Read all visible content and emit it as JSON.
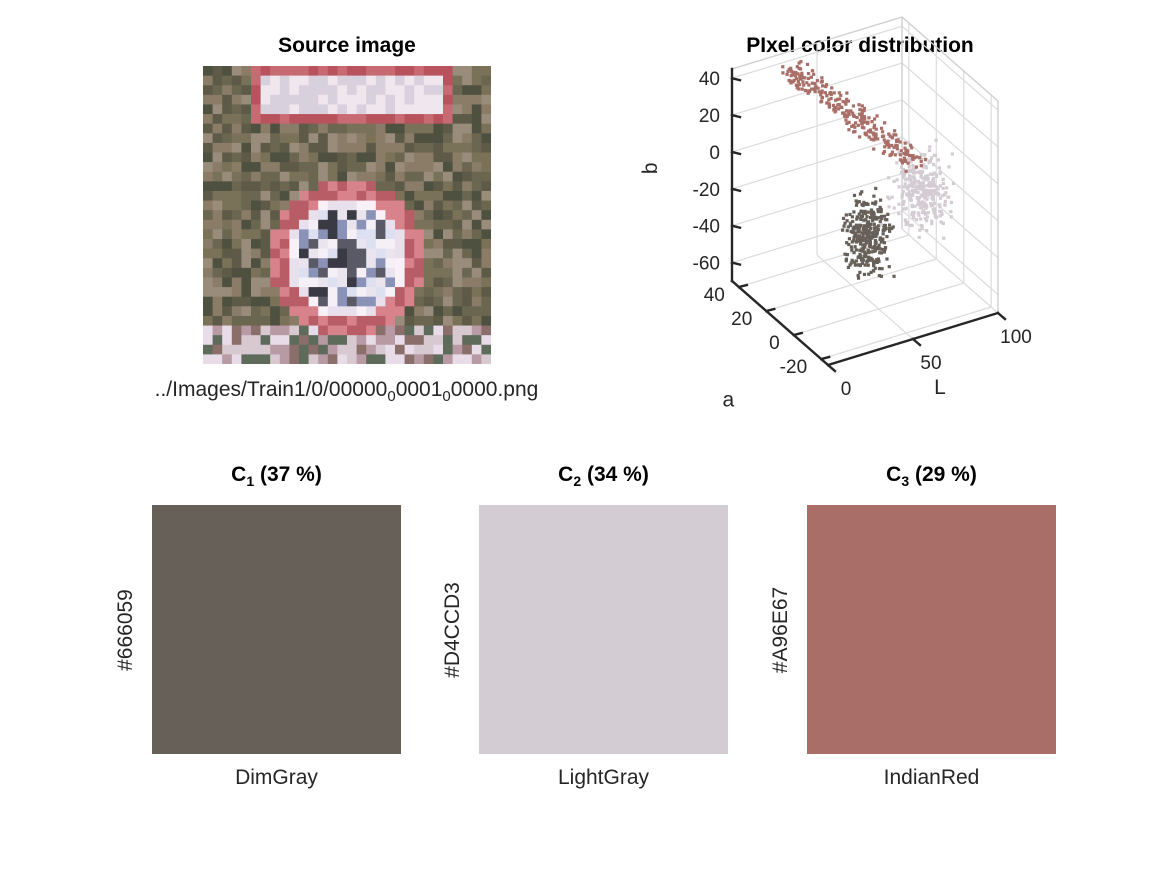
{
  "source": {
    "title": "Source image",
    "caption_parts": [
      "../Images/Train1/0/00000",
      "0",
      "0001",
      "0",
      "0000.png"
    ]
  },
  "scatter": {
    "title": "PIxel color distribution"
  },
  "swatches": [
    {
      "title_main": "C",
      "title_sub": "1",
      "title_rest": " (37 %)",
      "hex": "#666059",
      "color": "#666059",
      "name": "DimGray"
    },
    {
      "title_main": "C",
      "title_sub": "2",
      "title_rest": " (34 %)",
      "hex": "#D4CCD3",
      "color": "#D4CCD3",
      "name": "LightGray"
    },
    {
      "title_main": "C",
      "title_sub": "3",
      "title_rest": " (29 %)",
      "hex": "#A96E67",
      "color": "#A96E67",
      "name": "IndianRed"
    }
  ],
  "chart_data": {
    "type": "scatter",
    "title": "PIxel color distribution",
    "projection": "3d",
    "axes": {
      "L": {
        "label": "L",
        "range": [
          0,
          100
        ],
        "ticks": [
          0,
          50,
          100
        ]
      },
      "a": {
        "label": "a",
        "range": [
          -25,
          45
        ],
        "ticks": [
          -20,
          0,
          20,
          40
        ]
      },
      "b": {
        "label": "b",
        "range": [
          -70,
          45
        ],
        "ticks": [
          -60,
          -40,
          -20,
          0,
          20,
          40
        ]
      }
    },
    "grid": true,
    "series": [
      {
        "color": "#666059",
        "fraction": 0.37,
        "L_range": [
          30,
          60
        ],
        "a_range": [
          -10,
          15
        ],
        "b_range": [
          -60,
          0
        ]
      },
      {
        "color": "#D4CCD3",
        "fraction": 0.34,
        "L_range": [
          60,
          100
        ],
        "a_range": [
          -10,
          20
        ],
        "b_range": [
          -45,
          10
        ]
      },
      {
        "color": "#A96E67",
        "fraction": 0.29,
        "L_range": [
          30,
          80
        ],
        "a_range": [
          5,
          40
        ],
        "b_range": [
          0,
          40
        ]
      }
    ]
  }
}
